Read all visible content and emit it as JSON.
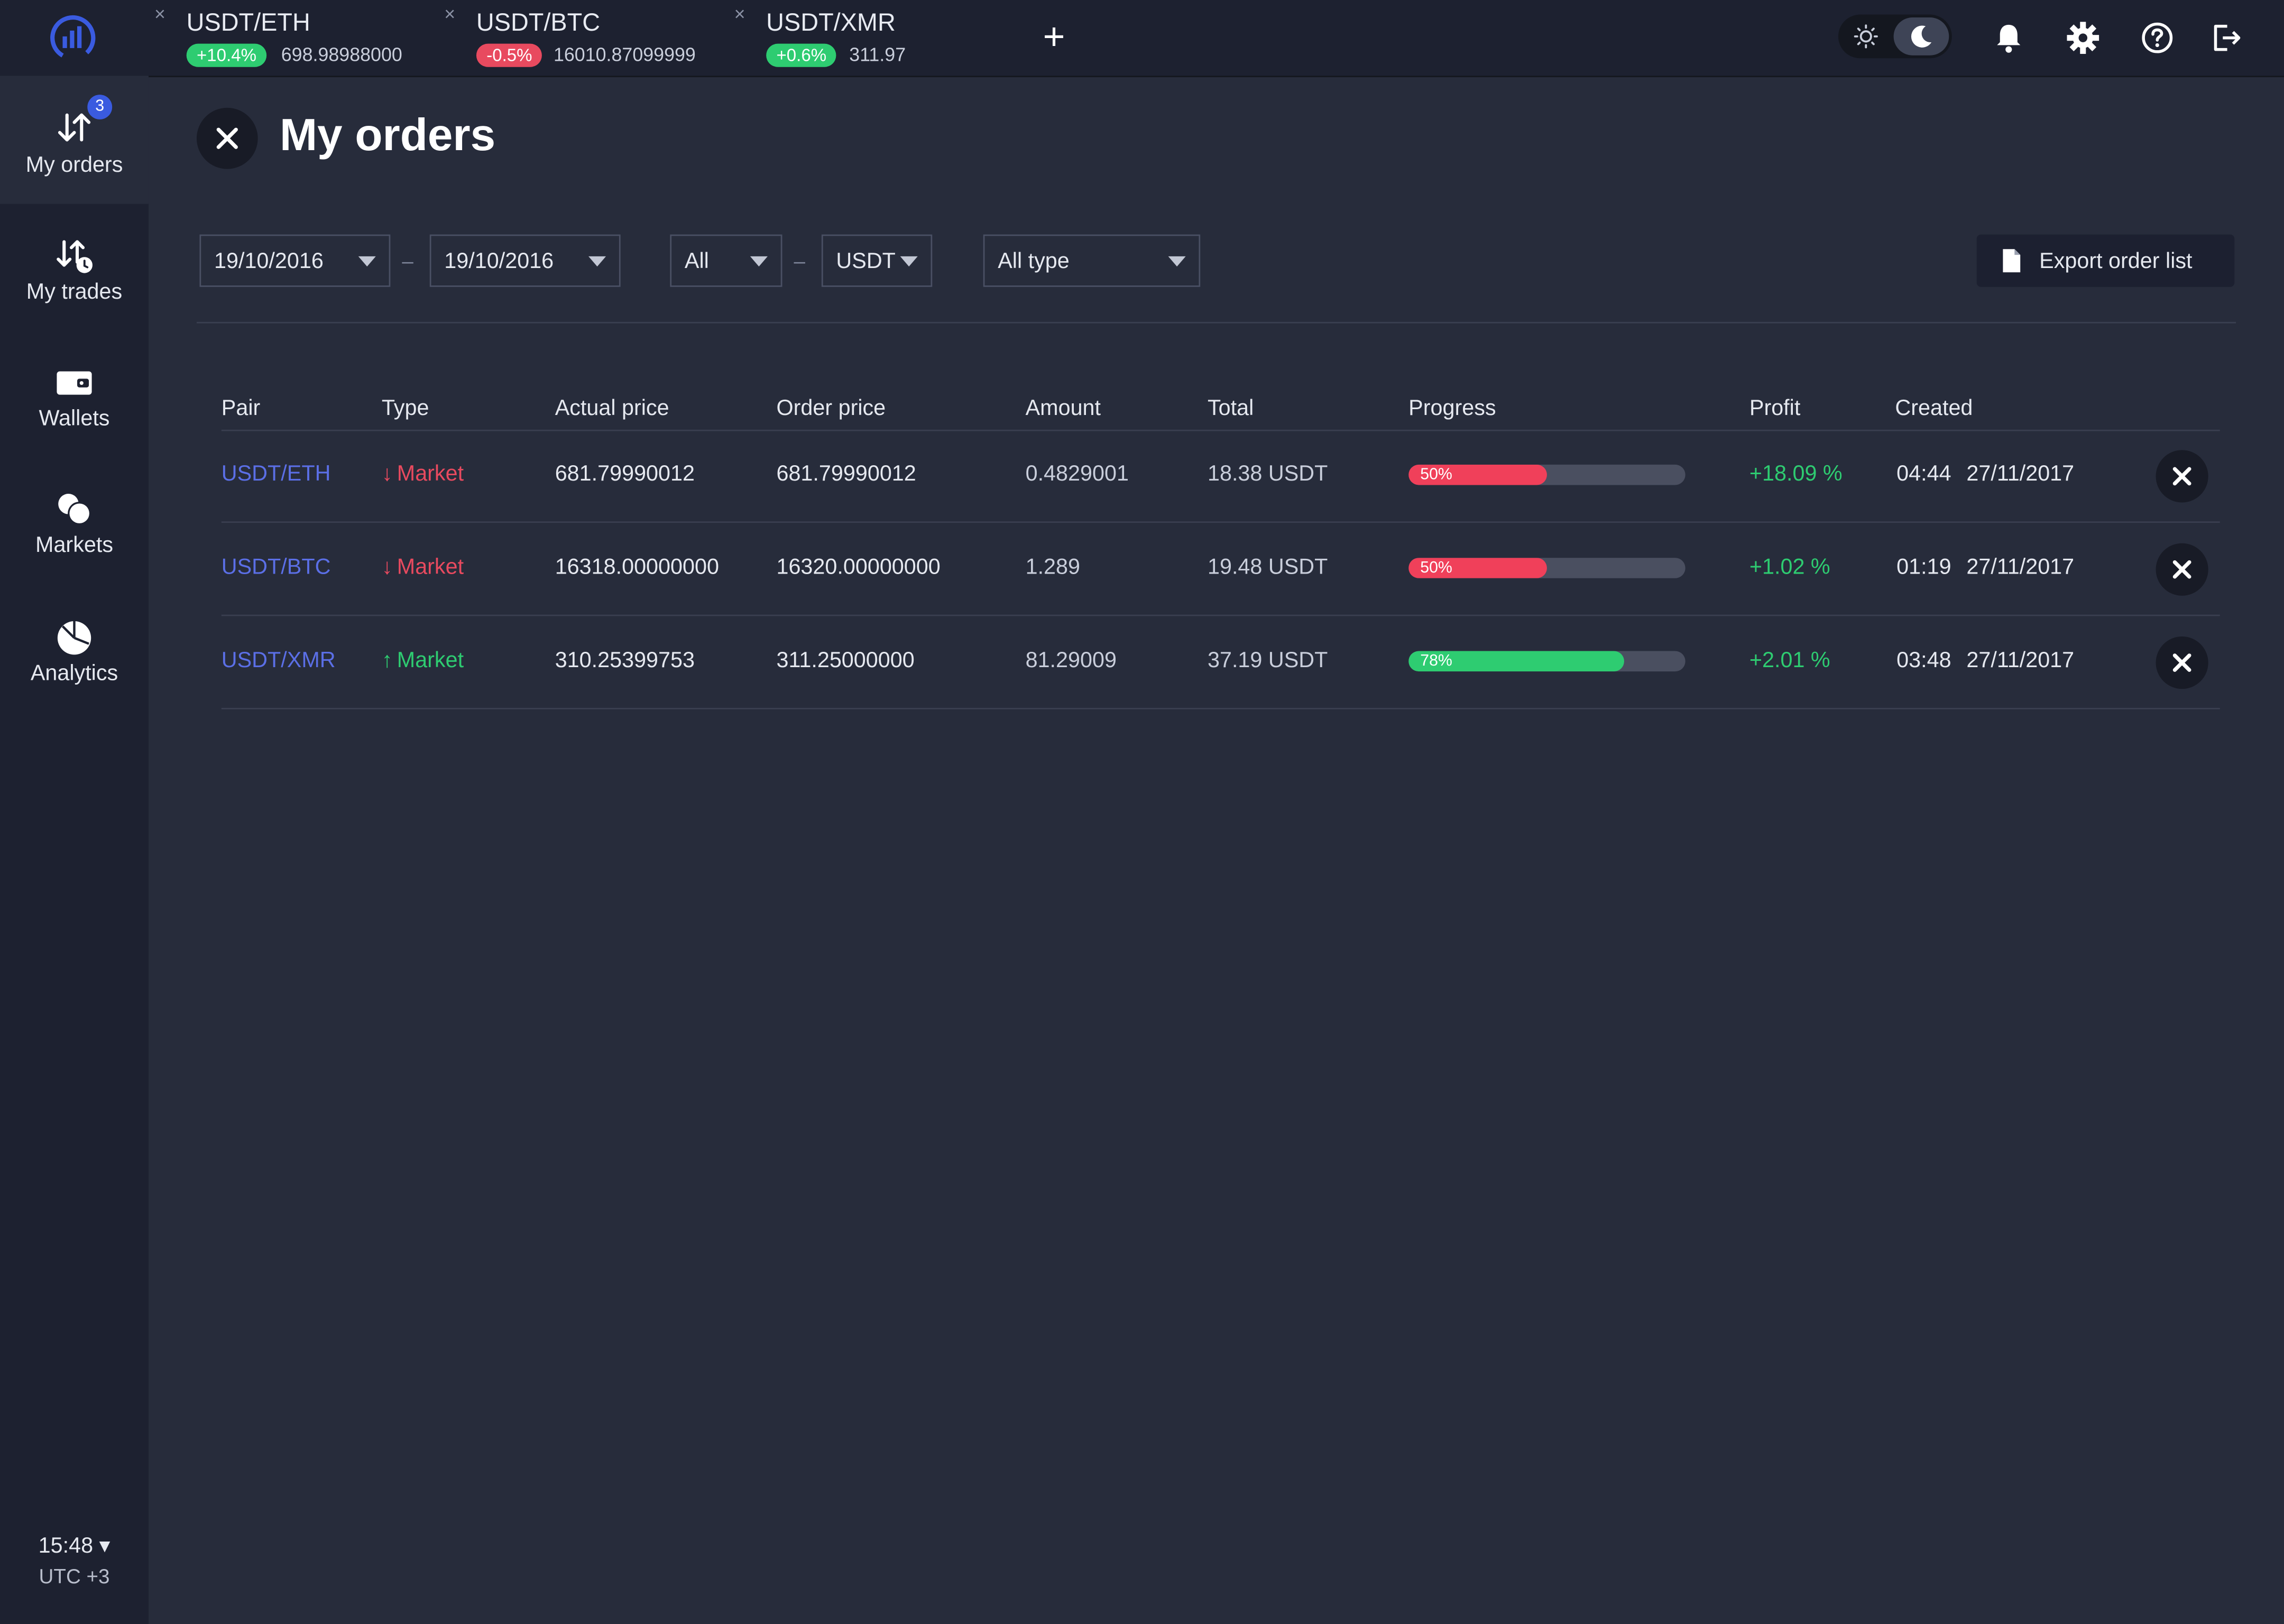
{
  "tabs": [
    {
      "title": "USDT/ETH",
      "change": "+10.4%",
      "change_color": "#2ecc71",
      "price": "698.98988000"
    },
    {
      "title": "USDT/BTC",
      "change": "-0.5%",
      "change_color": "#e84a5f",
      "price": "16010.87099999"
    },
    {
      "title": "USDT/XMR",
      "change": "+0.6%",
      "change_color": "#2ecc71",
      "price": "311.97"
    }
  ],
  "topbar": {
    "close_icon": "×",
    "add_tab": "+",
    "icons": [
      "sun-icon",
      "moon-icon",
      "bell-icon",
      "gear-icon",
      "help-icon",
      "logout-icon"
    ]
  },
  "sidebar": {
    "items": [
      {
        "label": "My orders",
        "icon": "orders-arrows-icon",
        "badge": "3",
        "active": true
      },
      {
        "label": "My trades",
        "icon": "trades-arrows-clock-icon"
      },
      {
        "label": "Wallets",
        "icon": "wallet-icon"
      },
      {
        "label": "Markets",
        "icon": "markets-circles-icon"
      },
      {
        "label": "Analytics",
        "icon": "pie-chart-icon"
      }
    ],
    "clock": {
      "time": "15:48 ▾",
      "timezone": "UTC +3"
    }
  },
  "main": {
    "title": "My orders",
    "filters": {
      "date_from": "19/10/2016",
      "date_to": "19/10/2016",
      "base": "All",
      "quote": "USDT",
      "type": "All type",
      "separator": "–"
    },
    "export_label": "Export order list"
  },
  "table": {
    "columns": [
      "Pair",
      "Type",
      "Actual price",
      "Order price",
      "Amount",
      "Total",
      "Progress",
      "Profit",
      "Created"
    ],
    "rows": [
      {
        "pair": "USDT/ETH",
        "direction": "down",
        "arrow": "↓",
        "type": "Market",
        "type_color": "#e84a5f",
        "actual_price": "681.79990012",
        "order_price": "681.79990012",
        "amount": "0.4829001",
        "total": "18.38 USDT",
        "progress": 50,
        "progress_label": "50%",
        "progress_color": "#f0405a",
        "profit": "+18.09 %",
        "time": "04:44",
        "date": "27/11/2017"
      },
      {
        "pair": "USDT/BTC",
        "direction": "down",
        "arrow": "↓",
        "type": "Market",
        "type_color": "#e84a5f",
        "actual_price": "16318.00000000",
        "order_price": "16320.00000000",
        "amount": "1.289",
        "total": "19.48 USDT",
        "progress": 50,
        "progress_label": "50%",
        "progress_color": "#f0405a",
        "profit": "+1.02 %",
        "time": "01:19",
        "date": "27/11/2017"
      },
      {
        "pair": "USDT/XMR",
        "direction": "up",
        "arrow": "↑",
        "type": "Market",
        "type_color": "#2ecc71",
        "actual_price": "310.25399753",
        "order_price": "311.25000000",
        "amount": "81.29009",
        "total": "37.19 USDT",
        "progress": 78,
        "progress_label": "78%",
        "progress_color": "#2ecc71",
        "profit": "+2.01 %",
        "time": "03:48",
        "date": "27/11/2017"
      }
    ]
  }
}
